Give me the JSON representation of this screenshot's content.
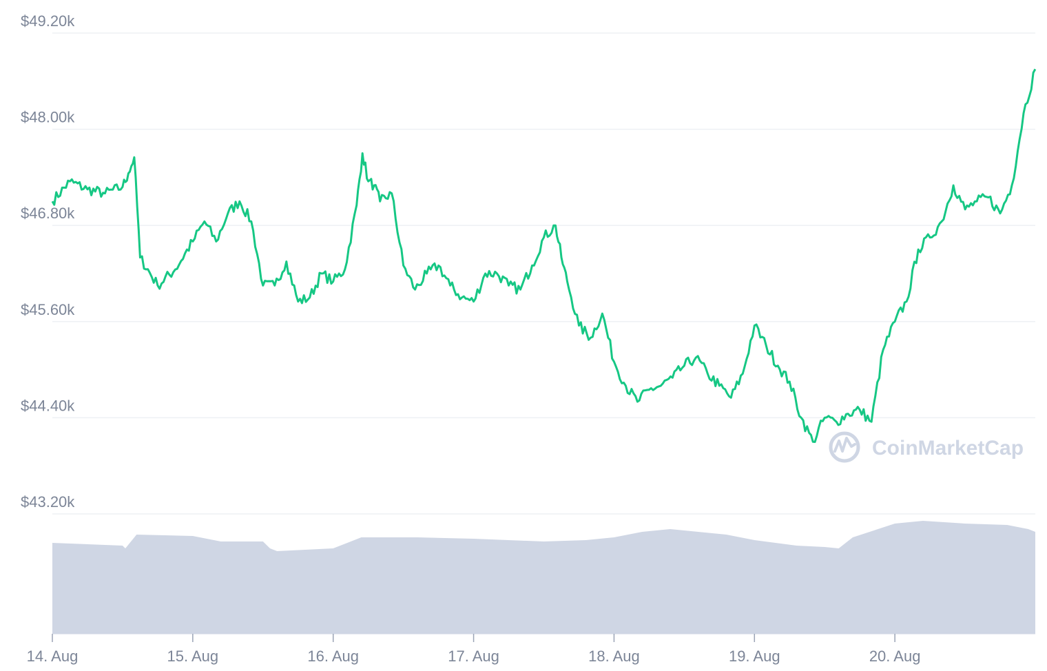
{
  "chart_data": {
    "type": "line",
    "title": "",
    "xlabel": "",
    "ylabel": "",
    "y_axis": {
      "min": 43200,
      "max": 49200,
      "ticks": [
        49200,
        48000,
        46800,
        45600,
        44400,
        43200
      ],
      "tick_labels": [
        "$49.20k",
        "$48.00k",
        "$46.80k",
        "$45.60k",
        "$44.40k",
        "$43.20k"
      ]
    },
    "x_axis": {
      "range_days": [
        14.0,
        21.0
      ],
      "tick_days": [
        14,
        15,
        16,
        17,
        18,
        19,
        20
      ],
      "tick_labels": [
        "14. Aug",
        "15. Aug",
        "16. Aug",
        "17. Aug",
        "18. Aug",
        "19. Aug",
        "20. Aug"
      ]
    },
    "grid": true,
    "series": [
      {
        "kind": "price",
        "color": "#16c784",
        "x": [
          "14. Aug 00:00",
          "14. Aug 03:00",
          "14. Aug 06:00",
          "14. Aug 09:00",
          "14. Aug 12:00",
          "14. Aug 13:00",
          "14. Aug 14:00",
          "14. Aug 15:00",
          "14. Aug 18:00",
          "14. Aug 21:00",
          "15. Aug 00:00",
          "15. Aug 02:00",
          "15. Aug 04:00",
          "15. Aug 06:00",
          "15. Aug 08:00",
          "15. Aug 10:00",
          "15. Aug 12:00",
          "15. Aug 14:00",
          "15. Aug 16:00",
          "15. Aug 18:00",
          "15. Aug 20:00",
          "15. Aug 22:00",
          "16. Aug 00:00",
          "16. Aug 02:00",
          "16. Aug 04:00",
          "16. Aug 05:00",
          "16. Aug 06:00",
          "16. Aug 07:00",
          "16. Aug 08:00",
          "16. Aug 10:00",
          "16. Aug 12:00",
          "16. Aug 14:00",
          "16. Aug 16:00",
          "16. Aug 18:00",
          "16. Aug 20:00",
          "16. Aug 22:00",
          "17. Aug 00:00",
          "17. Aug 02:00",
          "17. Aug 04:00",
          "17. Aug 06:00",
          "17. Aug 08:00",
          "17. Aug 10:00",
          "17. Aug 12:00",
          "17. Aug 14:00",
          "17. Aug 15:00",
          "17. Aug 16:00",
          "17. Aug 18:00",
          "17. Aug 20:00",
          "17. Aug 22:00",
          "18. Aug 00:00",
          "18. Aug 02:00",
          "18. Aug 04:00",
          "18. Aug 06:00",
          "18. Aug 08:00",
          "18. Aug 10:00",
          "18. Aug 12:00",
          "18. Aug 14:00",
          "18. Aug 16:00",
          "18. Aug 18:00",
          "18. Aug 20:00",
          "18. Aug 22:00",
          "19. Aug 00:00",
          "19. Aug 02:00",
          "19. Aug 04:00",
          "19. Aug 06:00",
          "19. Aug 08:00",
          "19. Aug 10:00",
          "19. Aug 12:00",
          "19. Aug 14:00",
          "19. Aug 16:00",
          "19. Aug 18:00",
          "19. Aug 20:00",
          "19. Aug 22:00",
          "20. Aug 00:00",
          "20. Aug 02:00",
          "20. Aug 04:00",
          "20. Aug 06:00",
          "20. Aug 08:00",
          "20. Aug 10:00",
          "20. Aug 12:00",
          "20. Aug 14:00",
          "20. Aug 16:00",
          "20. Aug 18:00",
          "20. Aug 20:00",
          "20. Aug 22:00",
          "20. Aug 23:59"
        ],
        "y": [
          47100,
          47350,
          47250,
          47200,
          47280,
          47450,
          47650,
          46400,
          46050,
          46250,
          46600,
          46850,
          46600,
          46950,
          47100,
          46850,
          46050,
          46050,
          46350,
          45850,
          45900,
          46200,
          46100,
          46250,
          47050,
          47700,
          47350,
          47300,
          47100,
          47200,
          46300,
          46000,
          46200,
          46300,
          46050,
          45900,
          45850,
          46200,
          46200,
          46050,
          46000,
          46300,
          46650,
          46800,
          46400,
          46100,
          45550,
          45400,
          45700,
          45100,
          44800,
          44600,
          44750,
          44800,
          44900,
          45050,
          45150,
          44950,
          44800,
          44650,
          44950,
          45550,
          45300,
          45050,
          44850,
          44400,
          44100,
          44400,
          44350,
          44450,
          44500,
          44350,
          45250,
          45600,
          45850,
          46500,
          46650,
          46850,
          47300,
          47000,
          47100,
          47150,
          46950,
          47300,
          48200,
          48750
        ]
      },
      {
        "kind": "volume",
        "color": "#cfd6e4",
        "x_days": [
          14.0,
          14.5,
          14.52,
          14.6,
          15.0,
          15.2,
          15.5,
          15.55,
          15.6,
          16.0,
          16.2,
          16.4,
          16.6,
          17.0,
          17.5,
          17.8,
          18.0,
          18.2,
          18.4,
          18.6,
          18.8,
          19.0,
          19.3,
          19.5,
          19.6,
          19.7,
          20.0,
          20.2,
          20.5,
          20.8,
          20.95,
          21.0
        ],
        "values": [
          66,
          64,
          62,
          72,
          71,
          67,
          67,
          62,
          60,
          62,
          70,
          70,
          70,
          69,
          67,
          68,
          70,
          74,
          76,
          74,
          72,
          68,
          64,
          63,
          62,
          70,
          80,
          82,
          80,
          79,
          76,
          74
        ]
      }
    ]
  },
  "watermark": {
    "text": "CoinMarketCap",
    "icon": "coinmarketcap-logo"
  }
}
